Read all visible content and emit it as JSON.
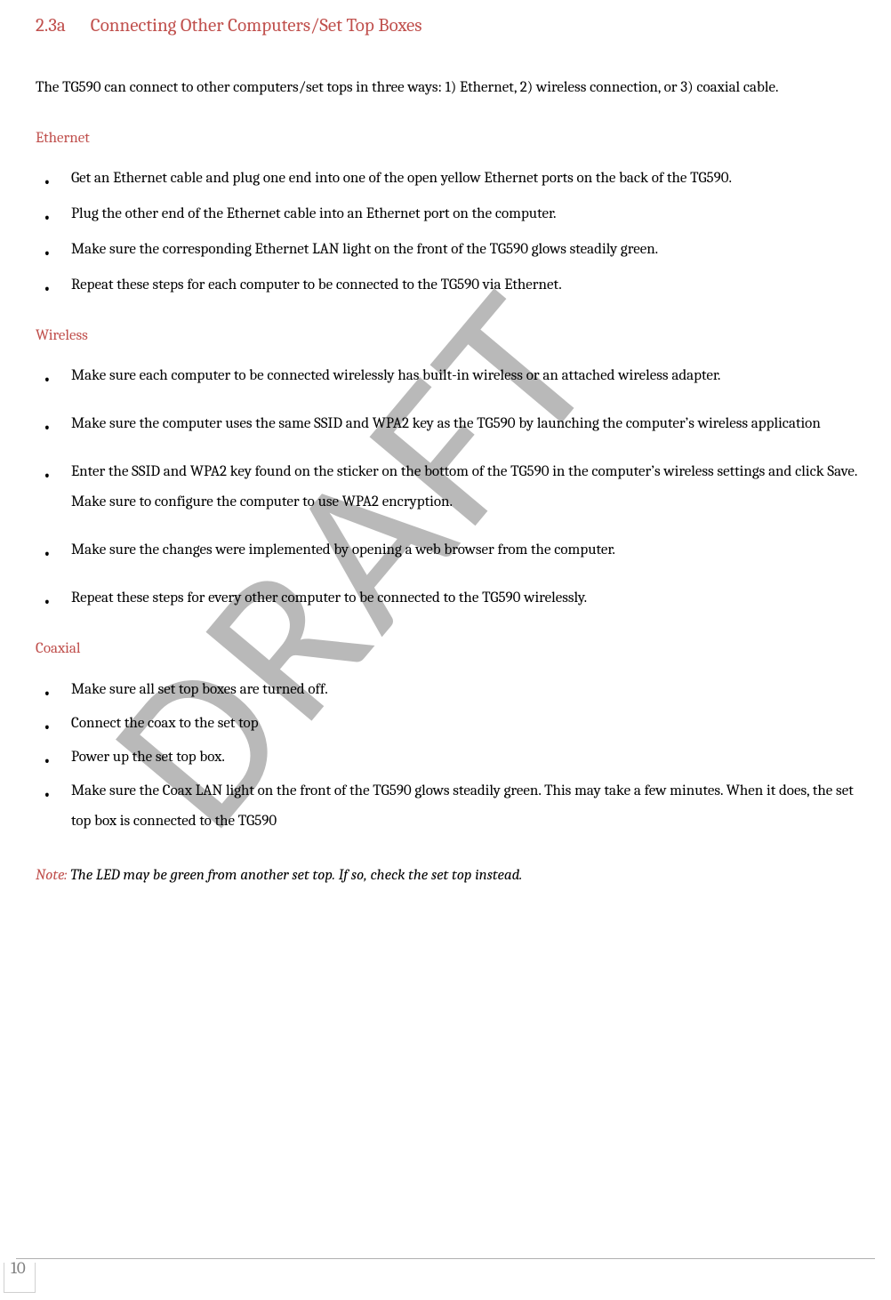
{
  "colors": {
    "accent": "#c0504d",
    "body_text": "#000000",
    "page_num": "#808080",
    "watermark": "#808080",
    "watermark_opacity": 0.55,
    "footer_line": "#b0b0b0",
    "background": "#ffffff"
  },
  "typography": {
    "heading_fontsize": 21,
    "body_fontsize": 17,
    "font_family": "Cambria"
  },
  "heading": {
    "number": "2.3a",
    "title": "Connecting Other Computers/Set Top Boxes"
  },
  "intro": "The TG590 can connect to other computers/set tops in three ways: 1) Ethernet, 2) wireless connection, or 3) coaxial cable.",
  "sections": {
    "ethernet": {
      "title": "Ethernet",
      "items": [
        "Get an Ethernet cable and plug one end into one of the open yellow Ethernet ports on the back of the TG590.",
        "Plug the other end of the Ethernet cable into an Ethernet port on the computer.",
        "Make sure the corresponding Ethernet LAN light on the front of the TG590  glows steadily green.",
        "Repeat these steps for each computer to be connected to the TG590  via Ethernet."
      ]
    },
    "wireless": {
      "title": "Wireless",
      "items": [
        "Make sure each computer to be connected wirelessly has built-in wireless or an attached wireless adapter.",
        "Make sure the computer uses the same SSID and WPA2 key as the TG590  by launching the computer’s wireless application",
        "Enter the SSID and WPA2 key found on the sticker on the bottom of the TG590  in the computer’s wireless settings and click Save. Make sure to configure the computer to use WPA2 encryption.",
        "Make sure the changes were implemented by opening a web browser from the computer.",
        "Repeat these steps for every other computer to be connected to the TG590  wirelessly."
      ]
    },
    "coaxial": {
      "title": "Coaxial",
      "items": [
        "Make sure all set top boxes are turned off.",
        "Connect the coax to the set top",
        "Power up the set top box.",
        "Make sure the Coax LAN light on the front of the TG590  glows steadily green. This may take a few minutes. When it does, the set top box is connected to the TG590"
      ]
    }
  },
  "note": {
    "label": "Note:",
    "text": " The LED may be green from another set top.  If so, check the set top instead."
  },
  "page_number": "10",
  "watermark": {
    "text": "DRAFT",
    "rotation_deg": -50,
    "font_size": 240,
    "letter_spacing": 10
  }
}
